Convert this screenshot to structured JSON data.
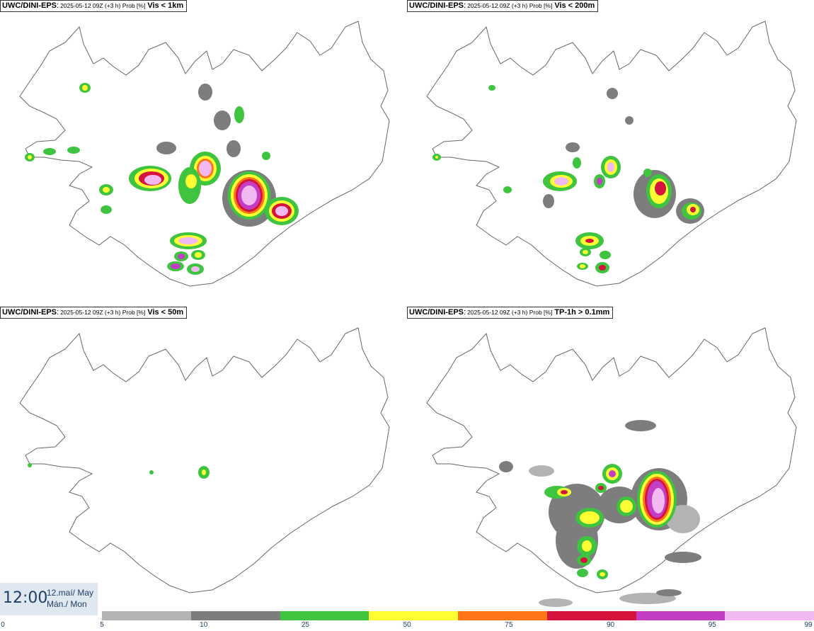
{
  "panels": [
    {
      "model": "UWC/DINI-EPS",
      "run": "2025-05-12 09Z (+3 h) Prob [%]",
      "param": "Vis < 1km"
    },
    {
      "model": "UWC/DINI-EPS",
      "run": "2025-05-12 09Z (+3 h) Prob [%]",
      "param": "Vis < 200m"
    },
    {
      "model": "UWC/DINI-EPS",
      "run": "2025-05-12 09Z (+3 h) Prob [%]",
      "param": "Vis < 50m"
    },
    {
      "model": "UWC/DINI-EPS",
      "run": "2025-05-12 09Z (+3 h) Prob [%]",
      "param": "TP-1h > 0.1mm"
    }
  ],
  "valid_time": {
    "time": "12:00",
    "date_line1": "12.maí/ May",
    "date_line2": "Mán./ Mon"
  },
  "colorbar": {
    "ticks": [
      "0",
      "5",
      "10",
      "25",
      "50",
      "75",
      "90",
      "95",
      "99"
    ],
    "colors": [
      "#ffffff",
      "#b3b3b3",
      "#7d7d7d",
      "#3ec43e",
      "#ffff33",
      "#ff7518",
      "#d4143c",
      "#c43ec4",
      "#f2b8f2"
    ]
  }
}
